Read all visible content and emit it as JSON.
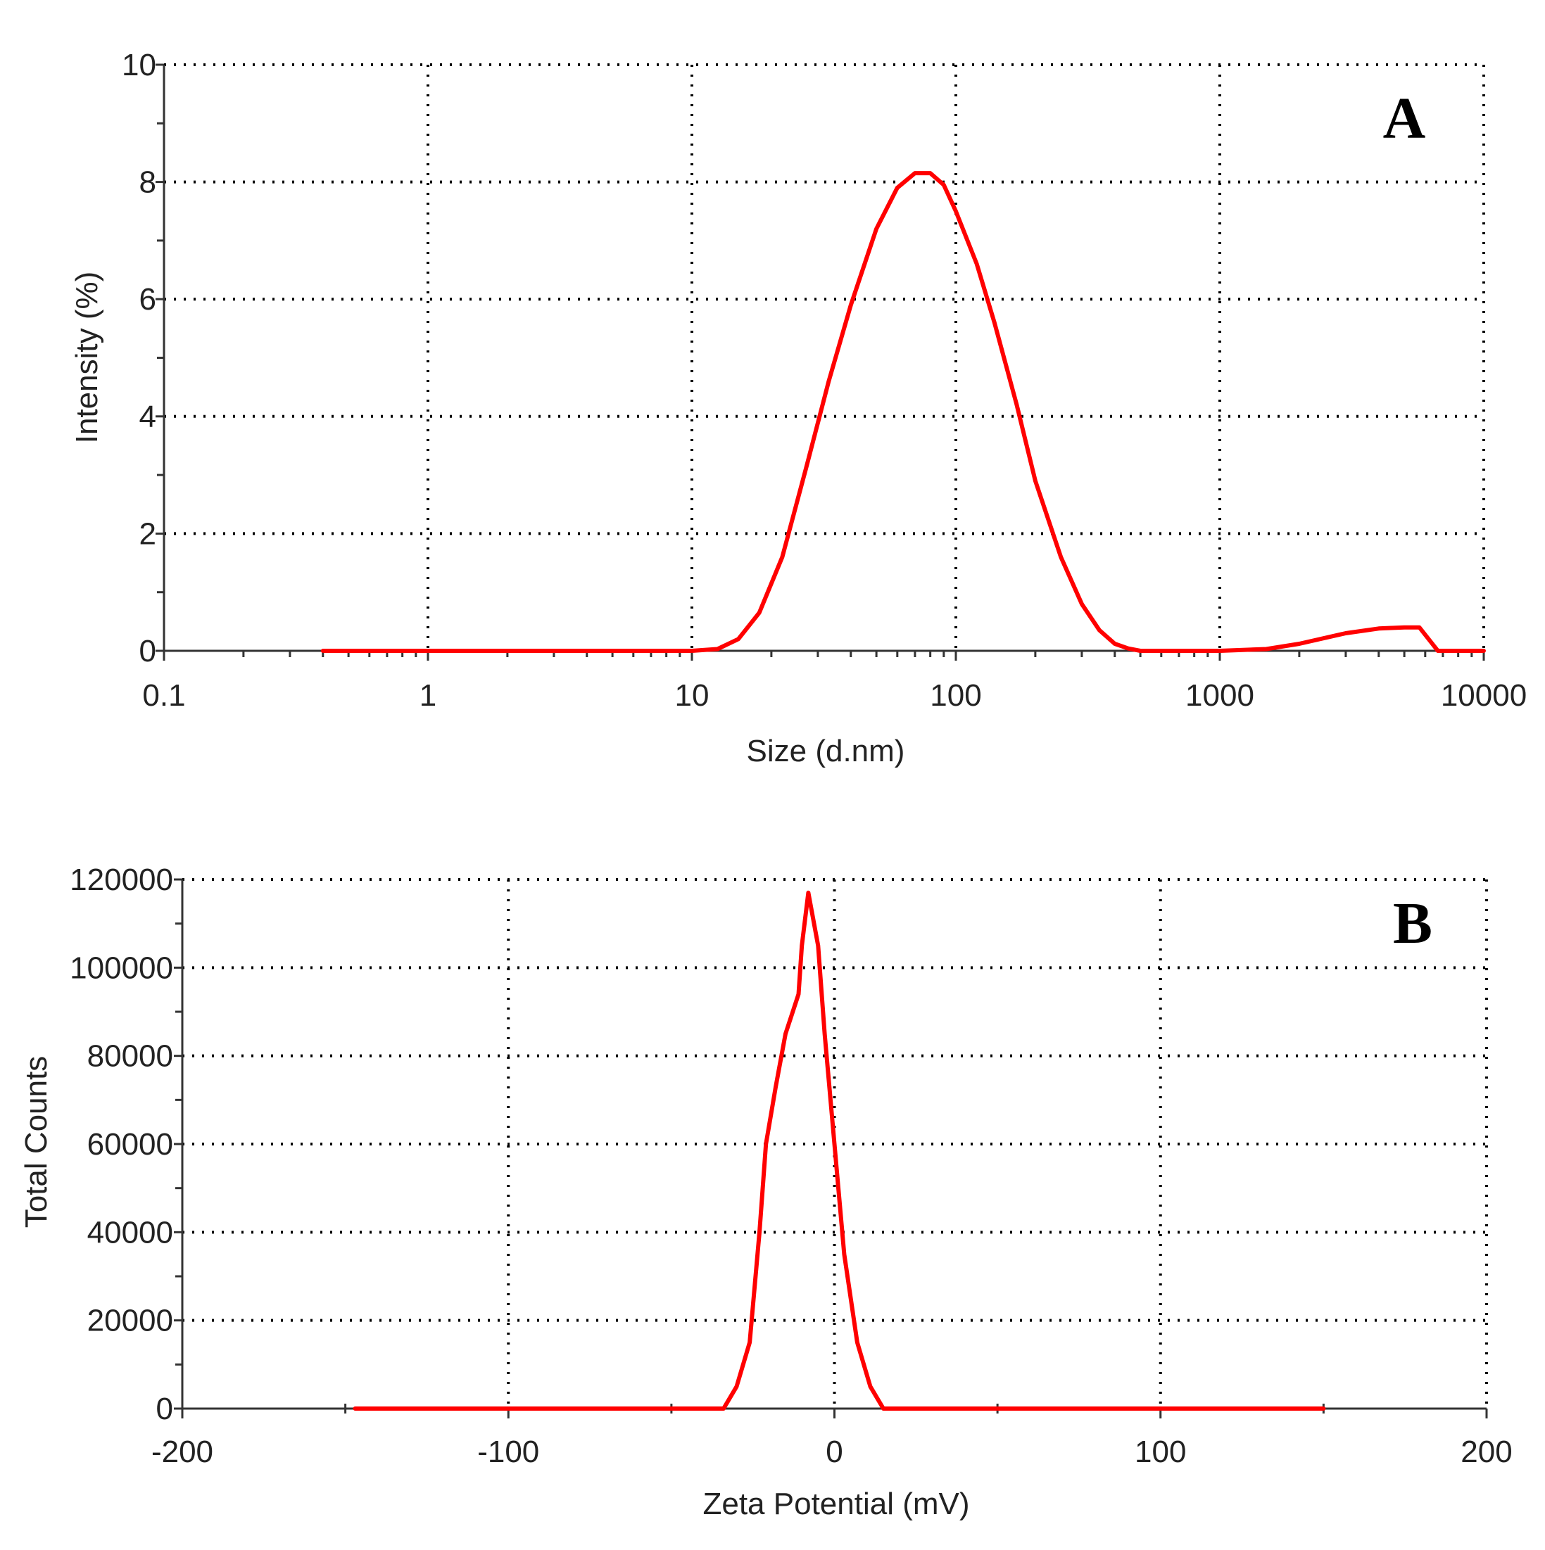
{
  "chart_data": [
    {
      "panel": "A",
      "type": "line",
      "xscale": "log",
      "xlabel": "Size (d.nm)",
      "ylabel": "Intensity (%)",
      "xlim": [
        0.1,
        10000
      ],
      "ylim": [
        0,
        10
      ],
      "xticks": [
        0.1,
        1,
        10,
        100,
        1000,
        10000
      ],
      "xtick_labels": [
        "0.1",
        "1",
        "10",
        "100",
        "1000",
        "10000"
      ],
      "yticks": [
        0,
        2,
        4,
        6,
        8,
        10
      ],
      "ytick_labels": [
        "0",
        "2",
        "4",
        "6",
        "8",
        "10"
      ],
      "grid": true,
      "series": [
        {
          "name": "Intensity",
          "color": "#ff0000",
          "x": [
            0.4,
            1,
            5,
            10,
            12.5,
            15,
            18,
            22,
            27,
            33,
            40,
            50,
            60,
            70,
            80,
            90,
            100,
            120,
            140,
            170,
            200,
            250,
            300,
            350,
            400,
            450,
            500,
            700,
            1000,
            1500,
            2000,
            3000,
            4000,
            5000,
            5700,
            6700,
            10000
          ],
          "y": [
            0,
            0,
            0,
            0,
            0.03,
            0.2,
            0.65,
            1.6,
            3.1,
            4.6,
            5.9,
            7.2,
            7.9,
            8.15,
            8.15,
            7.95,
            7.5,
            6.6,
            5.6,
            4.2,
            2.9,
            1.6,
            0.8,
            0.35,
            0.12,
            0.04,
            0,
            0,
            0,
            0.03,
            0.12,
            0.3,
            0.38,
            0.4,
            0.4,
            0,
            0
          ]
        }
      ],
      "annotations": [
        "A"
      ]
    },
    {
      "panel": "B",
      "type": "line",
      "xscale": "linear",
      "xlabel": "Zeta Potential (mV)",
      "ylabel": "Total Counts",
      "xlim": [
        -200,
        200
      ],
      "ylim": [
        0,
        120000
      ],
      "xticks": [
        -200,
        -100,
        0,
        100,
        200
      ],
      "xtick_labels": [
        "-200",
        "-100",
        "0",
        "100",
        "200"
      ],
      "yticks": [
        0,
        20000,
        40000,
        60000,
        80000,
        100000,
        120000
      ],
      "ytick_labels": [
        "0",
        "20000",
        "40000",
        "60000",
        "80000",
        "100000",
        "120000"
      ],
      "grid": true,
      "series": [
        {
          "name": "Total Counts",
          "color": "#ff0000",
          "x": [
            -147,
            -34,
            -30,
            -26,
            -23,
            -21,
            -18,
            -15,
            -11,
            -10,
            -8,
            -5,
            -3,
            0,
            3,
            7,
            11,
            15,
            150
          ],
          "y": [
            0,
            0,
            5000,
            15000,
            40000,
            60000,
            73000,
            85000,
            94000,
            105000,
            117000,
            105000,
            85000,
            60000,
            35000,
            15000,
            5000,
            0,
            0
          ]
        }
      ],
      "annotations": [
        "B"
      ]
    }
  ]
}
